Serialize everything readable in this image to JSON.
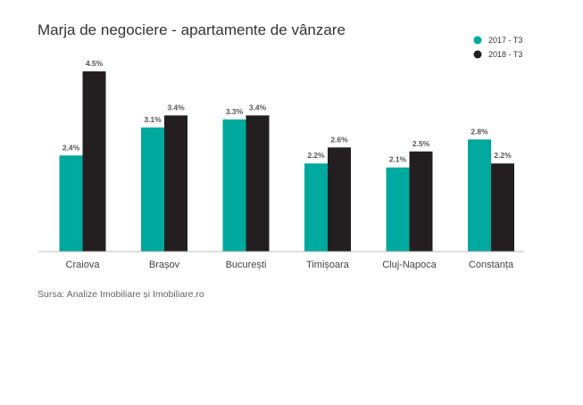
{
  "chart_data": {
    "type": "bar",
    "title": "Marja de negociere - apartamente de vânzare",
    "categories": [
      "Craiova",
      "Brașov",
      "București",
      "Timișoara",
      "Cluj-Napoca",
      "Constanța"
    ],
    "series": [
      {
        "name": "2017 - T3",
        "color": "#00a99d",
        "values": [
          2.4,
          3.1,
          3.3,
          2.2,
          2.1,
          2.8
        ],
        "labels": [
          "2.4%",
          "3.1%",
          "3.3%",
          "2.2%",
          "2.1%",
          "2.8%"
        ]
      },
      {
        "name": "2018 - T3",
        "color": "#231f20",
        "values": [
          4.5,
          3.4,
          3.4,
          2.6,
          2.5,
          2.2
        ],
        "labels": [
          "4.5%",
          "3.4%",
          "3.4%",
          "2.6%",
          "2.5%",
          "2.2%"
        ]
      }
    ],
    "ylim": [
      0,
      4.5
    ],
    "grid": false,
    "legend_position": "top-right",
    "source": "Sursa: Analize Imobiliare și Imobiliare.ro"
  }
}
